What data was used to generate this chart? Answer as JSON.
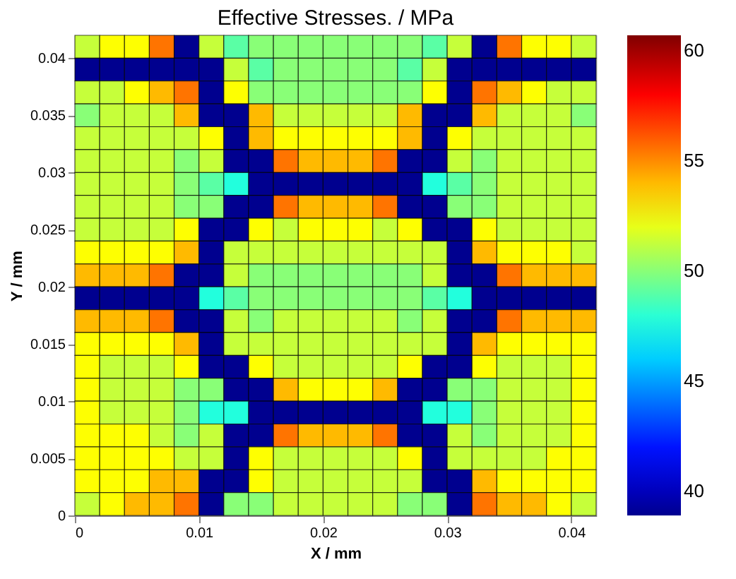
{
  "chart_data": {
    "type": "heatmap",
    "title": "Effective Stresses. / MPa",
    "xlabel": "X / mm",
    "ylabel": "Y / mm",
    "x": [
      0.001,
      0.003,
      0.005,
      0.007,
      0.009,
      0.011,
      0.013,
      0.015,
      0.017,
      0.019,
      0.021,
      0.023,
      0.025,
      0.027,
      0.029,
      0.031,
      0.033,
      0.035,
      0.037,
      0.039,
      0.041
    ],
    "y": [
      0.041,
      0.039,
      0.037,
      0.035,
      0.033,
      0.031,
      0.029,
      0.027,
      0.025,
      0.023,
      0.021,
      0.019,
      0.017,
      0.015,
      0.013,
      0.011,
      0.009,
      0.007,
      0.005,
      0.003,
      0.001
    ],
    "xlim": [
      0,
      0.042
    ],
    "xticks": [
      0,
      0.01,
      0.02,
      0.03,
      0.04
    ],
    "ylim": [
      0,
      0.042
    ],
    "yticks": [
      0,
      0.005,
      0.01,
      0.015,
      0.02,
      0.025,
      0.03,
      0.035,
      0.04
    ],
    "clim": [
      38.9,
      60.7
    ],
    "cticks": [
      40,
      45,
      50,
      55,
      60
    ],
    "cells": [
      [
        51.3,
        52.5,
        52.5,
        55.5,
        38.9,
        51.3,
        49,
        50,
        50,
        50,
        50,
        50,
        50,
        50,
        49,
        51.3,
        38.9,
        55.5,
        52.5,
        52.5,
        51.3
      ],
      [
        38.9,
        38.9,
        38.9,
        38.9,
        38.9,
        38.9,
        51.3,
        49,
        50,
        50,
        50,
        50,
        50,
        49,
        51.3,
        38.9,
        38.9,
        38.9,
        38.9,
        38.9,
        38.9
      ],
      [
        51.3,
        51.3,
        52.5,
        54,
        55.5,
        38.9,
        52.5,
        50,
        50,
        50,
        50,
        50,
        50,
        50,
        52.5,
        38.9,
        55.5,
        54,
        52.5,
        51.3,
        51.3
      ],
      [
        50,
        51.3,
        51.3,
        51.3,
        54,
        38.9,
        38.9,
        54,
        51.3,
        51.3,
        51.3,
        51.3,
        51.3,
        54,
        38.9,
        38.9,
        54,
        51.3,
        51.3,
        51.3,
        50
      ],
      [
        51.3,
        51.3,
        51.3,
        51.3,
        51.3,
        52.5,
        38.9,
        54,
        52.5,
        52.5,
        52.5,
        52.5,
        52.5,
        54,
        38.9,
        52.5,
        51.3,
        51.3,
        51.3,
        51.3,
        51.3
      ],
      [
        51.3,
        51.3,
        51.3,
        51.3,
        50,
        51.3,
        38.9,
        38.9,
        55.5,
        54,
        54,
        54,
        55.5,
        38.9,
        38.9,
        51.3,
        50,
        51.3,
        51.3,
        51.3,
        51.3
      ],
      [
        51.3,
        51.3,
        51.3,
        51.3,
        50,
        49,
        47.8,
        38.9,
        38.9,
        38.9,
        38.9,
        38.9,
        38.9,
        38.9,
        47.8,
        49,
        50,
        51.3,
        51.3,
        51.3,
        51.3
      ],
      [
        51.3,
        51.3,
        51.3,
        51.3,
        50,
        50,
        38.9,
        38.9,
        55.5,
        54,
        54,
        54,
        55.5,
        38.9,
        38.9,
        50,
        50,
        51.3,
        51.3,
        51.3,
        51.3
      ],
      [
        51.3,
        51.3,
        51.3,
        51.3,
        52.5,
        38.9,
        38.9,
        52.5,
        51.3,
        52.5,
        52.5,
        52.5,
        51.3,
        52.5,
        38.9,
        38.9,
        52.5,
        51.3,
        51.3,
        51.3,
        51.3
      ],
      [
        52.5,
        52.5,
        52.5,
        52.5,
        54,
        38.9,
        51.3,
        51.3,
        51.3,
        51.3,
        51.3,
        51.3,
        51.3,
        51.3,
        51.3,
        38.9,
        54,
        52.5,
        52.5,
        52.5,
        51.3
      ],
      [
        54,
        54,
        54,
        55.5,
        38.9,
        38.9,
        51.3,
        50,
        50,
        50,
        50,
        50,
        50,
        50,
        51.3,
        38.9,
        38.9,
        55.5,
        54,
        54,
        54
      ],
      [
        38.9,
        38.9,
        38.9,
        38.9,
        38.9,
        47.8,
        49,
        50,
        50,
        50,
        50,
        50,
        50,
        50,
        49,
        47.8,
        38.9,
        38.9,
        38.9,
        38.9,
        38.9
      ],
      [
        54,
        54,
        54,
        55.5,
        38.9,
        38.9,
        51.3,
        50,
        51.3,
        51.3,
        51.3,
        51.3,
        51.3,
        50,
        51.3,
        38.9,
        38.9,
        55.5,
        54,
        54,
        54
      ],
      [
        52.5,
        52.5,
        52.5,
        52.5,
        54,
        38.9,
        51.3,
        51.3,
        51.3,
        51.3,
        51.3,
        51.3,
        51.3,
        51.3,
        51.3,
        38.9,
        54,
        52.5,
        52.5,
        52.5,
        52.5
      ],
      [
        52.5,
        51.3,
        51.3,
        51.3,
        52.5,
        38.9,
        38.9,
        52.5,
        51.3,
        51.3,
        51.3,
        51.3,
        51.3,
        52.5,
        38.9,
        38.9,
        52.5,
        51.3,
        51.3,
        51.3,
        52.5
      ],
      [
        52.5,
        51.3,
        51.3,
        51.3,
        50,
        50,
        38.9,
        38.9,
        54,
        52.5,
        52.5,
        52.5,
        54,
        38.9,
        38.9,
        50,
        50,
        51.3,
        51.3,
        51.3,
        52.5
      ],
      [
        52.5,
        51.3,
        51.3,
        51.3,
        50,
        47.8,
        47.8,
        38.9,
        38.9,
        38.9,
        38.9,
        38.9,
        38.9,
        38.9,
        47.8,
        47.8,
        50,
        51.3,
        51.3,
        51.3,
        52.5
      ],
      [
        52.5,
        52.5,
        52.5,
        51.3,
        50,
        51.3,
        38.9,
        38.9,
        55.5,
        54,
        54,
        54,
        55.5,
        38.9,
        38.9,
        51.3,
        50,
        51.3,
        51.3,
        51.3,
        52.5
      ],
      [
        52.5,
        52.5,
        52.5,
        52.5,
        51.3,
        51.3,
        38.9,
        52.5,
        51.3,
        51.3,
        51.3,
        51.3,
        51.3,
        52.5,
        38.9,
        51.3,
        51.3,
        51.3,
        51.3,
        52.5,
        52.5
      ],
      [
        52.5,
        52.5,
        52.5,
        54,
        54,
        38.9,
        38.9,
        52.5,
        51.3,
        51.3,
        51.3,
        51.3,
        51.3,
        51.3,
        38.9,
        38.9,
        54,
        52.5,
        52.5,
        52.5,
        52.5
      ],
      [
        51.3,
        52.5,
        54,
        54,
        55.5,
        38.9,
        50,
        50,
        51.3,
        51.3,
        51.3,
        51.3,
        51.3,
        50,
        50,
        38.9,
        55.5,
        54,
        54,
        52.5,
        51.3
      ]
    ]
  }
}
